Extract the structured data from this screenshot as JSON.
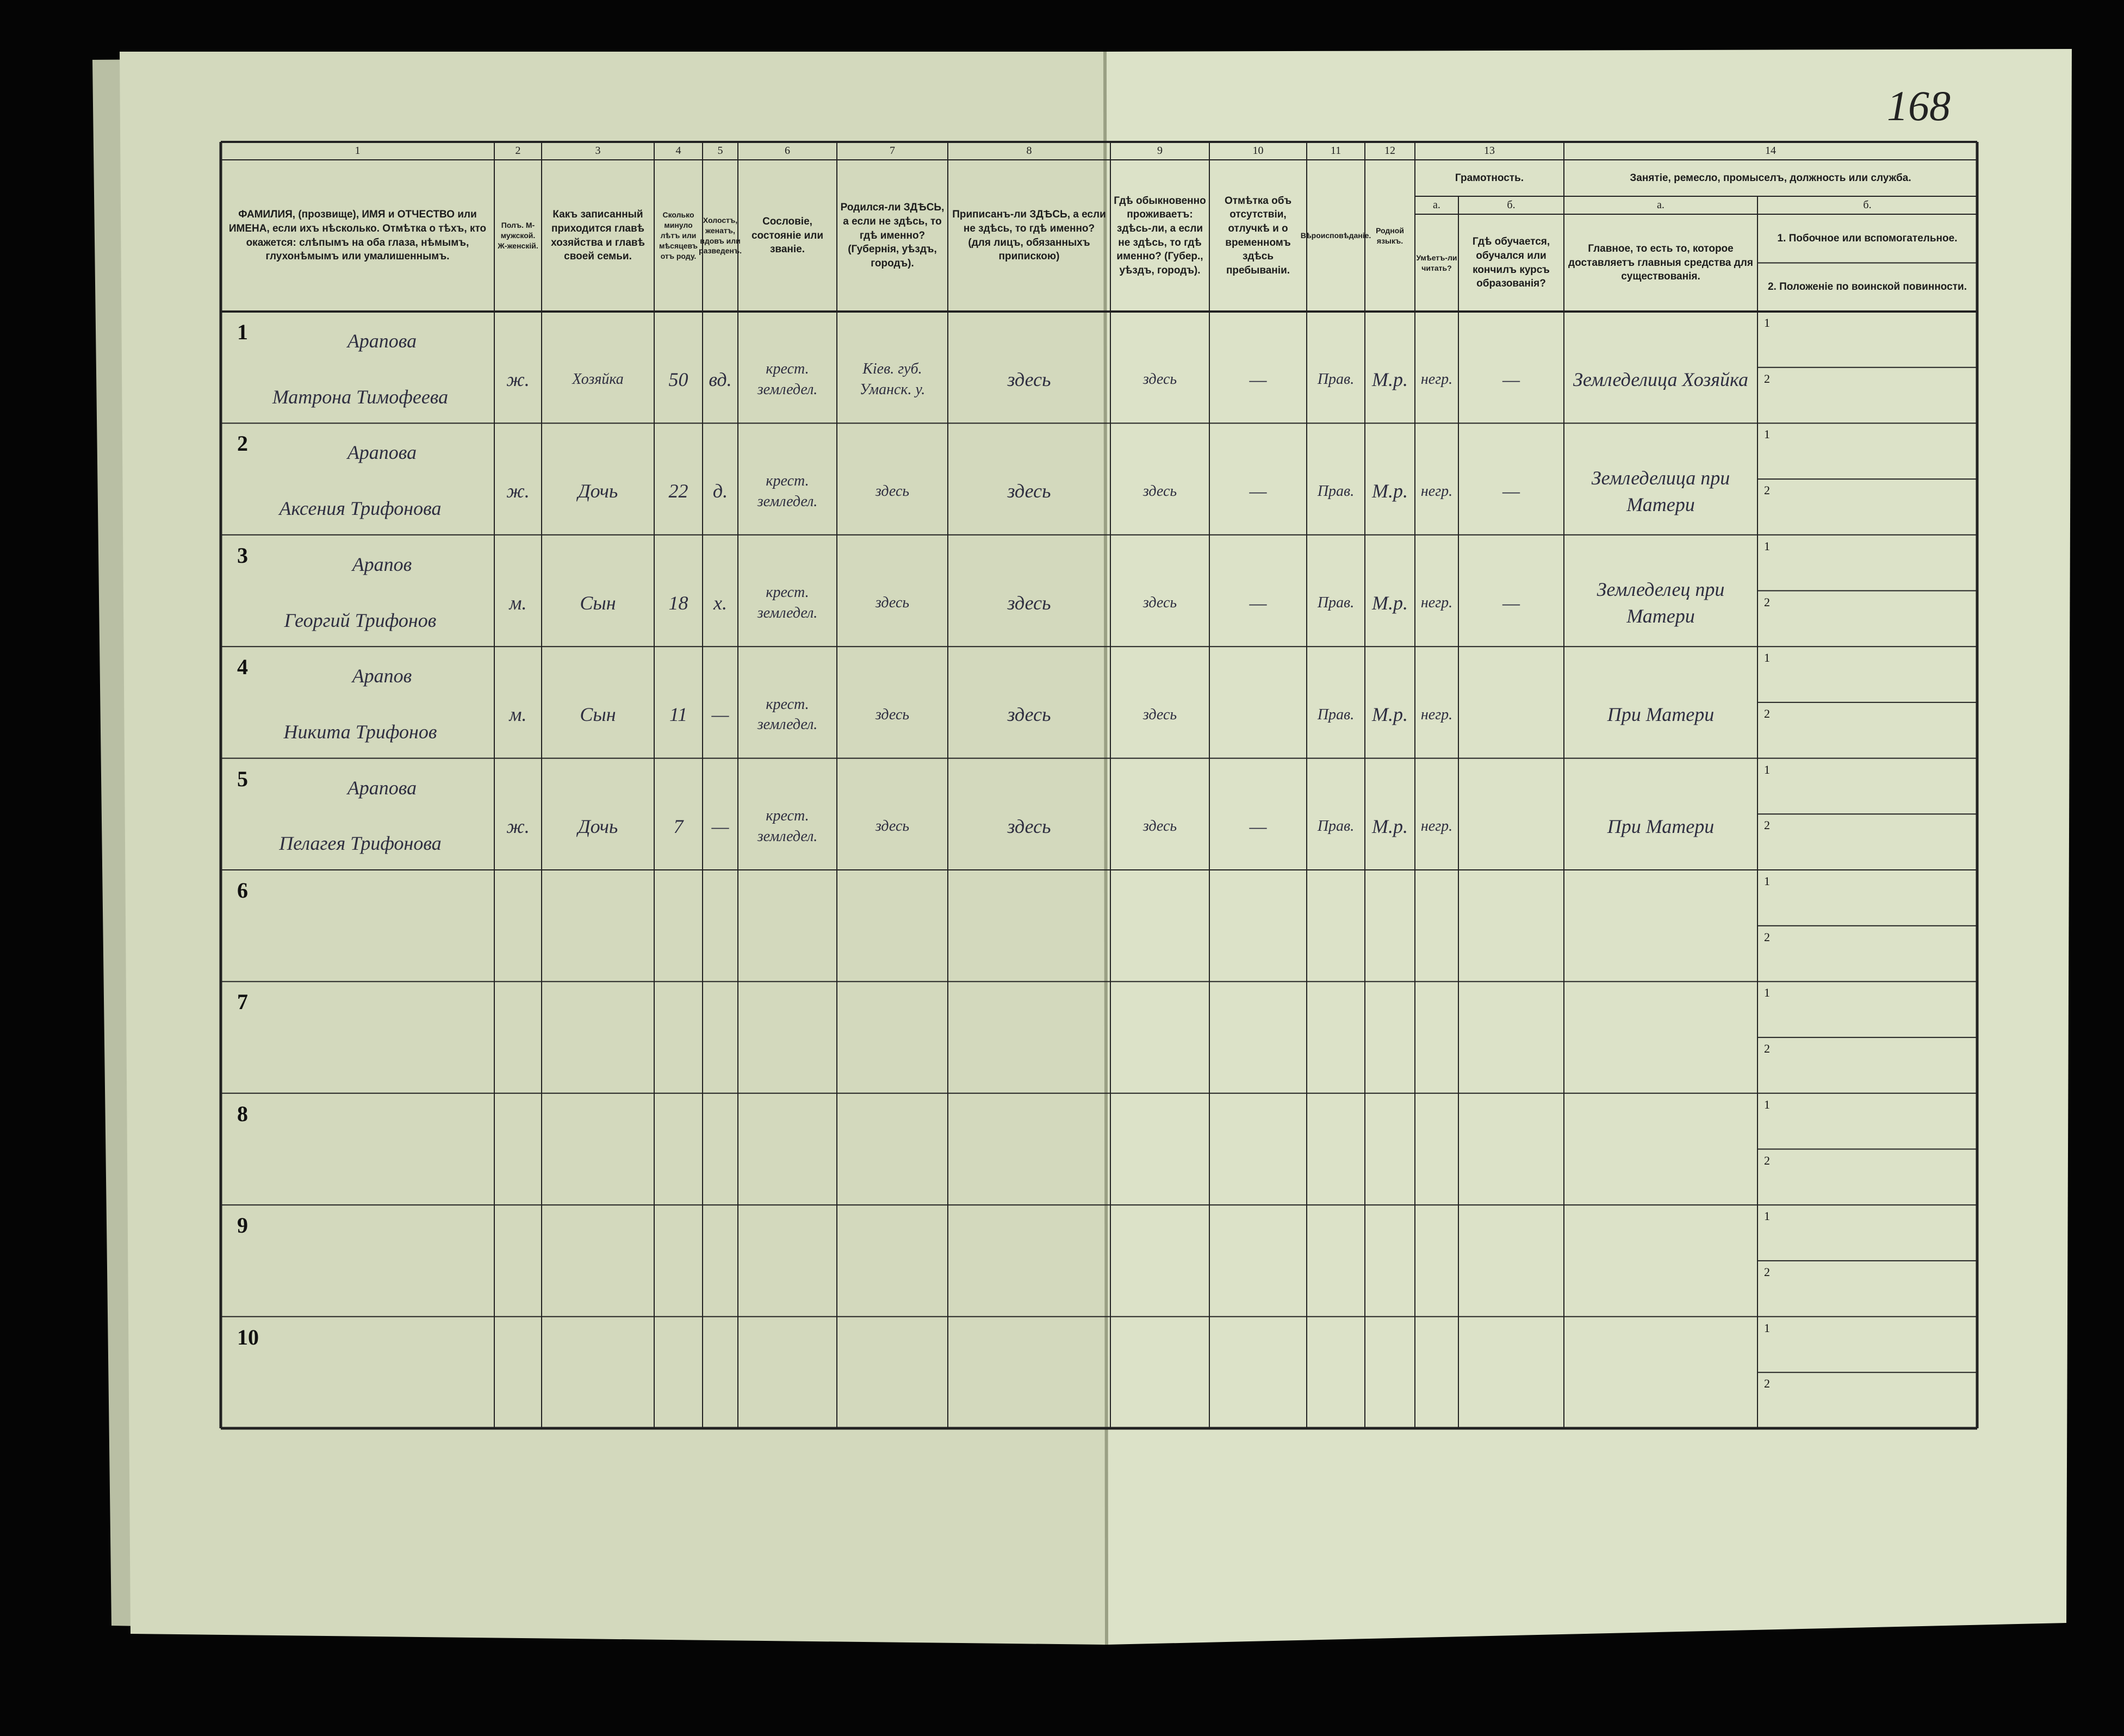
{
  "page_number": "168",
  "header": {
    "column_numbers": [
      "1",
      "2",
      "3",
      "4",
      "5",
      "6",
      "7",
      "8",
      "9",
      "10",
      "11",
      "12",
      "13",
      "14"
    ],
    "columns": [
      "ФАМИЛИЯ, (прозвище), ИМЯ и ОТЧЕСТВО или ИМЕНА, если ихъ нѣсколько. Отмѣтка о тѣхъ, кто окажется: слѣпымъ на оба глаза, нѣмымъ, глухонѣмымъ или умалишеннымъ.",
      "Полъ. М-мужской. Ж-женскій.",
      "Какъ записанный приходится главѣ хозяйства и главѣ своей семьи.",
      "Сколько минуло лѣтъ или мѣсяцевъ отъ роду.",
      "Холостъ, женатъ, вдовъ или разведенъ.",
      "Сословіе, состояніе или званіе.",
      "Родился-ли ЗДѢСЬ, а если не здѣсь, то гдѣ именно? (Губернія, уѣздъ, городъ).",
      "Приписанъ-ли ЗДѢСЬ, а если не здѣсь, то гдѣ именно? (для лицъ, обязанныхъ припискою)",
      "Гдѣ обыкновенно проживаетъ: здѣсь-ли, а если не здѣсь, то гдѣ именно? (Губер., уѣздъ, городъ).",
      "Отмѣтка объ отсутствіи, отлучкѣ и о временномъ здѣсь пребываніи.",
      "Вѣроисповѣданіе.",
      "Родной языкъ.",
      "Грамотность.",
      "Занятіе, ремесло, промыселъ, должность или служба."
    ],
    "sub_labels": [
      "а.",
      "б.",
      "а.",
      "б."
    ],
    "sub_columns": [
      "Умѣетъ-ли читать?",
      "Гдѣ обучается, обучался или кончилъ курсъ образованія?",
      "Главное, то есть то, которое доставляетъ главныя средства для существованія.",
      "1. Побочное или вспомогательное.",
      "2. Положеніе по воинской повинности."
    ],
    "subrow_labels": [
      "1",
      "2"
    ]
  },
  "rows": [
    {
      "number": "1",
      "name": [
        "Арапова",
        "Матрона Тимофеева"
      ],
      "fields": [
        "ж.",
        "Хозяйка",
        "50",
        "вд.",
        "крест. земледел.",
        "Кiев. губ. Уманск. у.",
        "здесь",
        "здесь",
        "—",
        "Прав.",
        "М.р.",
        "негр.",
        "—",
        "Земледелица Хозяйка"
      ]
    },
    {
      "number": "2",
      "name": [
        "Арапова",
        "Аксения Трифонова"
      ],
      "fields": [
        "ж.",
        "Дочь",
        "22",
        "д.",
        "крест. земледел.",
        "здесь",
        "здесь",
        "здесь",
        "—",
        "Прав.",
        "М.р.",
        "негр.",
        "—",
        "Земледелица при Матери"
      ]
    },
    {
      "number": "3",
      "name": [
        "Арапов",
        "Георгий Трифонов"
      ],
      "fields": [
        "м.",
        "Сын",
        "18",
        "х.",
        "крест. земледел.",
        "здесь",
        "здесь",
        "здесь",
        "—",
        "Прав.",
        "М.р.",
        "негр.",
        "—",
        "Земледелец при Матери"
      ]
    },
    {
      "number": "4",
      "name": [
        "Арапов",
        "Никита Трифонов"
      ],
      "fields": [
        "м.",
        "Сын",
        "11",
        "—",
        "крест. земледел.",
        "здесь",
        "здесь",
        "здесь",
        "",
        "Прав.",
        "М.р.",
        "негр.",
        "",
        "При Матери"
      ]
    },
    {
      "number": "5",
      "name": [
        "Арапова",
        "Пелагея Трифонова"
      ],
      "fields": [
        "ж.",
        "Дочь",
        "7",
        "—",
        "крест. земледел.",
        "здесь",
        "здесь",
        "здесь",
        "—",
        "Прав.",
        "М.р.",
        "негр.",
        "",
        "При Матери"
      ]
    },
    {
      "number": "6"
    },
    {
      "number": "7"
    },
    {
      "number": "8"
    },
    {
      "number": "9"
    },
    {
      "number": "10"
    }
  ]
}
